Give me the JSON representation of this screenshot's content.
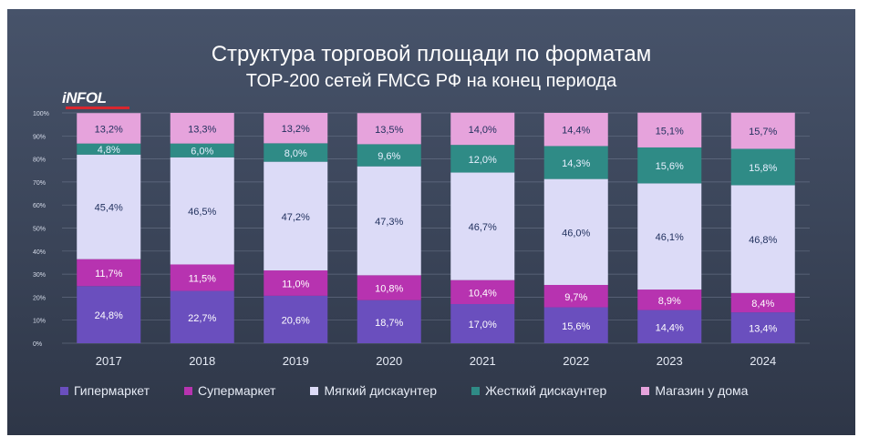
{
  "chart_data": {
    "type": "bar",
    "stacked": true,
    "title": "Структура торговой площади по форматам",
    "subtitle": "TOP-200 сетей FMCG РФ на конец периода",
    "categories": [
      "2017",
      "2018",
      "2019",
      "2020",
      "2021",
      "2022",
      "2023",
      "2024"
    ],
    "series": [
      {
        "name": "Гипермаркет",
        "color": "#6a4fbe",
        "values": [
          24.8,
          22.7,
          20.6,
          18.7,
          17.0,
          15.6,
          14.4,
          13.4
        ],
        "labels": [
          "24,8%",
          "22,7%",
          "20,6%",
          "18,7%",
          "17,0%",
          "15,6%",
          "14,4%",
          "13,4%"
        ]
      },
      {
        "name": "Супермаркет",
        "color": "#b733b0",
        "values": [
          11.7,
          11.5,
          11.0,
          10.8,
          10.4,
          9.7,
          8.9,
          8.4
        ],
        "labels": [
          "11,7%",
          "11,5%",
          "11,0%",
          "10,8%",
          "10,4%",
          "9,7%",
          "8,9%",
          "8,4%"
        ]
      },
      {
        "name": "Мягкий дискаунтер",
        "color": "#dcdbf7",
        "values": [
          45.4,
          46.5,
          47.2,
          47.3,
          46.7,
          46.0,
          46.1,
          46.8
        ],
        "labels": [
          "45,4%",
          "46,5%",
          "47,2%",
          "47,3%",
          "46,7%",
          "46,0%",
          "46,1%",
          "46,8%"
        ]
      },
      {
        "name": "Жесткий дискаунтер",
        "color": "#2f8b86",
        "values": [
          4.8,
          6.0,
          8.0,
          9.6,
          12.0,
          14.3,
          15.6,
          15.8
        ],
        "labels": [
          "4,8%",
          "6,0%",
          "8,0%",
          "9,6%",
          "12,0%",
          "14,3%",
          "15,6%",
          "15,8%"
        ]
      },
      {
        "name": "Магазин у дома",
        "color": "#e6a3dc",
        "values": [
          13.2,
          13.3,
          13.2,
          13.5,
          14.0,
          14.4,
          15.1,
          15.7
        ],
        "labels": [
          "13,2%",
          "13,3%",
          "13,2%",
          "13,5%",
          "14,0%",
          "14,4%",
          "15,1%",
          "15,7%"
        ]
      }
    ],
    "label_colors": [
      "#ffffff",
      "#ffffff",
      "#1f2f5c",
      "#e8f0ff",
      "#1f2f5c"
    ],
    "ylim": [
      0,
      100
    ],
    "yticks": [
      0,
      10,
      20,
      30,
      40,
      50,
      60,
      70,
      80,
      90,
      100
    ],
    "ytick_labels": [
      "0%",
      "10%",
      "20%",
      "30%",
      "40%",
      "50%",
      "60%",
      "70%",
      "80%",
      "90%",
      "100%"
    ],
    "grid": true,
    "legend_position": "bottom"
  },
  "logo": {
    "main": "iNFOLine",
    "sub": ""
  }
}
